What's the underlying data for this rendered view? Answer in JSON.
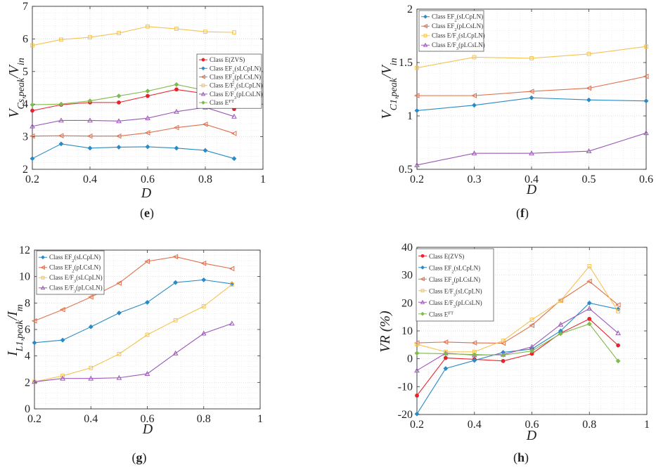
{
  "colors": {
    "red": "#e8232b",
    "blue": "#2a8ac4",
    "orange": "#e0704c",
    "yellow": "#f4c352",
    "purple": "#9a58b8",
    "green": "#7fba4c"
  },
  "chart_data": [
    {
      "type": "line",
      "panel": "e",
      "caption": "(e)",
      "xlabel": "D",
      "ylabel_main": "V",
      "ylabel_sub": "Cs,peak",
      "ylabel_tail": "/V",
      "ylabel_tail_sub": "in",
      "xlim": [
        0.2,
        1
      ],
      "ylim": [
        2,
        7
      ],
      "xticks": [
        "0.2",
        "0.4",
        "0.6",
        "0.8",
        "1"
      ],
      "yticks": [
        "2",
        "3",
        "4",
        "5",
        "6",
        "7"
      ],
      "legend_position": "right",
      "x": [
        0.2,
        0.3,
        0.4,
        0.5,
        0.6,
        0.7,
        0.8,
        0.9
      ],
      "series": [
        {
          "name": "Class E(ZVS)",
          "color": "red",
          "marker": "dot",
          "values": [
            3.8,
            3.98,
            4.05,
            4.05,
            4.25,
            4.45,
            4.32,
            3.85
          ]
        },
        {
          "name": "Class EF",
          "name_sub": "2",
          "name_tail": "(sLCpLN)",
          "color": "blue",
          "marker": "diamond",
          "values": [
            2.33,
            2.78,
            2.65,
            2.68,
            2.69,
            2.65,
            2.58,
            2.33
          ]
        },
        {
          "name": "Class EF",
          "name_sub": "2",
          "name_tail": "(pLCsLN)",
          "color": "orange",
          "marker": "triangle-left",
          "values": [
            3.02,
            3.03,
            3.02,
            3.02,
            3.12,
            3.28,
            3.38,
            3.1
          ]
        },
        {
          "name": "Class E/F",
          "name_sub": "3",
          "name_tail": "(sLCpLN)",
          "color": "yellow",
          "marker": "square",
          "values": [
            5.8,
            5.98,
            6.05,
            6.18,
            6.38,
            6.31,
            6.22,
            6.2
          ]
        },
        {
          "name": "Class E/F",
          "name_sub": "3",
          "name_tail": "(pLCsLN)",
          "color": "purple",
          "marker": "triangle-up",
          "values": [
            3.32,
            3.5,
            3.5,
            3.48,
            3.57,
            3.77,
            3.9,
            3.62
          ]
        },
        {
          "name": "Class E",
          "name_sup": "FT",
          "color": "green",
          "marker": "diamond",
          "values": [
            3.98,
            4.0,
            4.1,
            4.25,
            4.4,
            4.6,
            4.42,
            4.1
          ]
        }
      ]
    },
    {
      "type": "line",
      "panel": "f",
      "caption": "(f)",
      "xlabel": "D",
      "ylabel_main": "V",
      "ylabel_sub": "C1,peak",
      "ylabel_tail": "/V",
      "ylabel_tail_sub": "in",
      "xlim": [
        0.2,
        0.6
      ],
      "ylim": [
        0.5,
        2
      ],
      "xticks": [
        "0.2",
        "0.3",
        "0.4",
        "0.5",
        "0.6"
      ],
      "yticks": [
        "0.5",
        "1",
        "1.5",
        "2"
      ],
      "legend_position": "top-left",
      "x": [
        0.2,
        0.3,
        0.4,
        0.5,
        0.6
      ],
      "series": [
        {
          "name": "Class EF",
          "name_sub": "2",
          "name_tail": "(sLCpLN)",
          "color": "blue",
          "marker": "diamond",
          "values": [
            1.05,
            1.1,
            1.17,
            1.15,
            1.14
          ]
        },
        {
          "name": "Class EF",
          "name_sub": "2",
          "name_tail": "(pLCsLN)",
          "color": "orange",
          "marker": "triangle-left",
          "values": [
            1.19,
            1.19,
            1.23,
            1.26,
            1.37
          ]
        },
        {
          "name": "Class E/F",
          "name_sub": "3",
          "name_tail": "(sLCpLN)",
          "color": "yellow",
          "marker": "square",
          "values": [
            1.45,
            1.55,
            1.54,
            1.58,
            1.65
          ]
        },
        {
          "name": "Class E/F",
          "name_sub": "3",
          "name_tail": "(pLCsLN)",
          "color": "purple",
          "marker": "triangle-up",
          "values": [
            0.54,
            0.65,
            0.65,
            0.67,
            0.84
          ]
        }
      ]
    },
    {
      "type": "line",
      "panel": "g",
      "caption": "(g)",
      "xlabel": "D",
      "ylabel_main": "I",
      "ylabel_sub": "L1,peak",
      "ylabel_tail": "/I",
      "ylabel_tail_sub": "m",
      "xlim": [
        0.2,
        1
      ],
      "ylim": [
        0,
        12
      ],
      "xticks": [
        "0.2",
        "0.4",
        "0.6",
        "0.8",
        "1"
      ],
      "yticks": [
        "0",
        "2",
        "4",
        "6",
        "8",
        "10",
        "12"
      ],
      "legend_position": "top-left",
      "x": [
        0.2,
        0.3,
        0.4,
        0.5,
        0.6,
        0.7,
        0.8,
        0.9
      ],
      "series": [
        {
          "name": "Class EF",
          "name_sub": "2",
          "name_tail": "(sLCpLN)",
          "color": "blue",
          "marker": "diamond",
          "values": [
            5.0,
            5.2,
            6.2,
            7.25,
            8.05,
            9.55,
            9.75,
            9.45
          ]
        },
        {
          "name": "Class EF",
          "name_sub": "2",
          "name_tail": "(pLCsLN)",
          "color": "orange",
          "marker": "triangle-left",
          "values": [
            6.65,
            7.5,
            8.45,
            9.5,
            11.15,
            11.5,
            11.0,
            10.6
          ]
        },
        {
          "name": "Class E/F",
          "name_sub": "3",
          "name_tail": "(sLCpLN)",
          "color": "yellow",
          "marker": "square",
          "values": [
            2.05,
            2.5,
            3.1,
            4.15,
            5.6,
            6.7,
            7.75,
            9.4
          ]
        },
        {
          "name": "Class E/F",
          "name_sub": "3",
          "name_tail": "(pLCsLN)",
          "color": "purple",
          "marker": "triangle-up",
          "values": [
            2.05,
            2.3,
            2.3,
            2.35,
            2.65,
            4.2,
            5.7,
            6.45
          ]
        }
      ]
    },
    {
      "type": "line",
      "panel": "h",
      "caption": "(h)",
      "xlabel": "D",
      "ylabel_main": "VR (%)",
      "xlim": [
        0.2,
        1
      ],
      "ylim": [
        -20,
        40
      ],
      "xticks": [
        "0.2",
        "0.4",
        "0.6",
        "0.8",
        "1"
      ],
      "yticks": [
        "-20",
        "-10",
        "0",
        "10",
        "20",
        "30",
        "40"
      ],
      "legend_position": "top-left",
      "x": [
        0.2,
        0.3,
        0.4,
        0.5,
        0.6,
        0.7,
        0.8,
        0.9
      ],
      "series": [
        {
          "name": "Class E(ZVS)",
          "color": "red",
          "marker": "dot",
          "values": [
            -13.2,
            0.3,
            -0.2,
            -0.8,
            1.8,
            9.2,
            14.3,
            4.8
          ]
        },
        {
          "name": "Class EF",
          "name_sub": "2",
          "name_tail": "(sLCpLN)",
          "color": "blue",
          "marker": "diamond",
          "values": [
            -19.8,
            -3.5,
            -0.6,
            2.3,
            3.5,
            10.0,
            20.0,
            17.8
          ]
        },
        {
          "name": "Class EF",
          "name_sub": "2",
          "name_tail": "(pLCsLN)",
          "color": "orange",
          "marker": "triangle-left",
          "values": [
            5.7,
            6.0,
            5.7,
            5.6,
            12.0,
            21.0,
            27.8,
            19.3
          ]
        },
        {
          "name": "Class E/F",
          "name_sub": "3",
          "name_tail": "(sLCpLN)",
          "color": "yellow",
          "marker": "square",
          "values": [
            5.2,
            2.5,
            2.5,
            6.5,
            14.0,
            20.8,
            33.2,
            17.0
          ]
        },
        {
          "name": "Class E/F",
          "name_sub": "3",
          "name_tail": "(pLCsLN)",
          "color": "purple",
          "marker": "triangle-up",
          "values": [
            -4.2,
            2.0,
            1.3,
            1.5,
            4.3,
            12.3,
            18.0,
            9.2
          ]
        },
        {
          "name": "Class E",
          "name_sup": "FT",
          "color": "green",
          "marker": "diamond",
          "values": [
            2.0,
            1.8,
            1.5,
            1.3,
            2.8,
            9.0,
            12.5,
            -0.8
          ]
        }
      ]
    }
  ]
}
